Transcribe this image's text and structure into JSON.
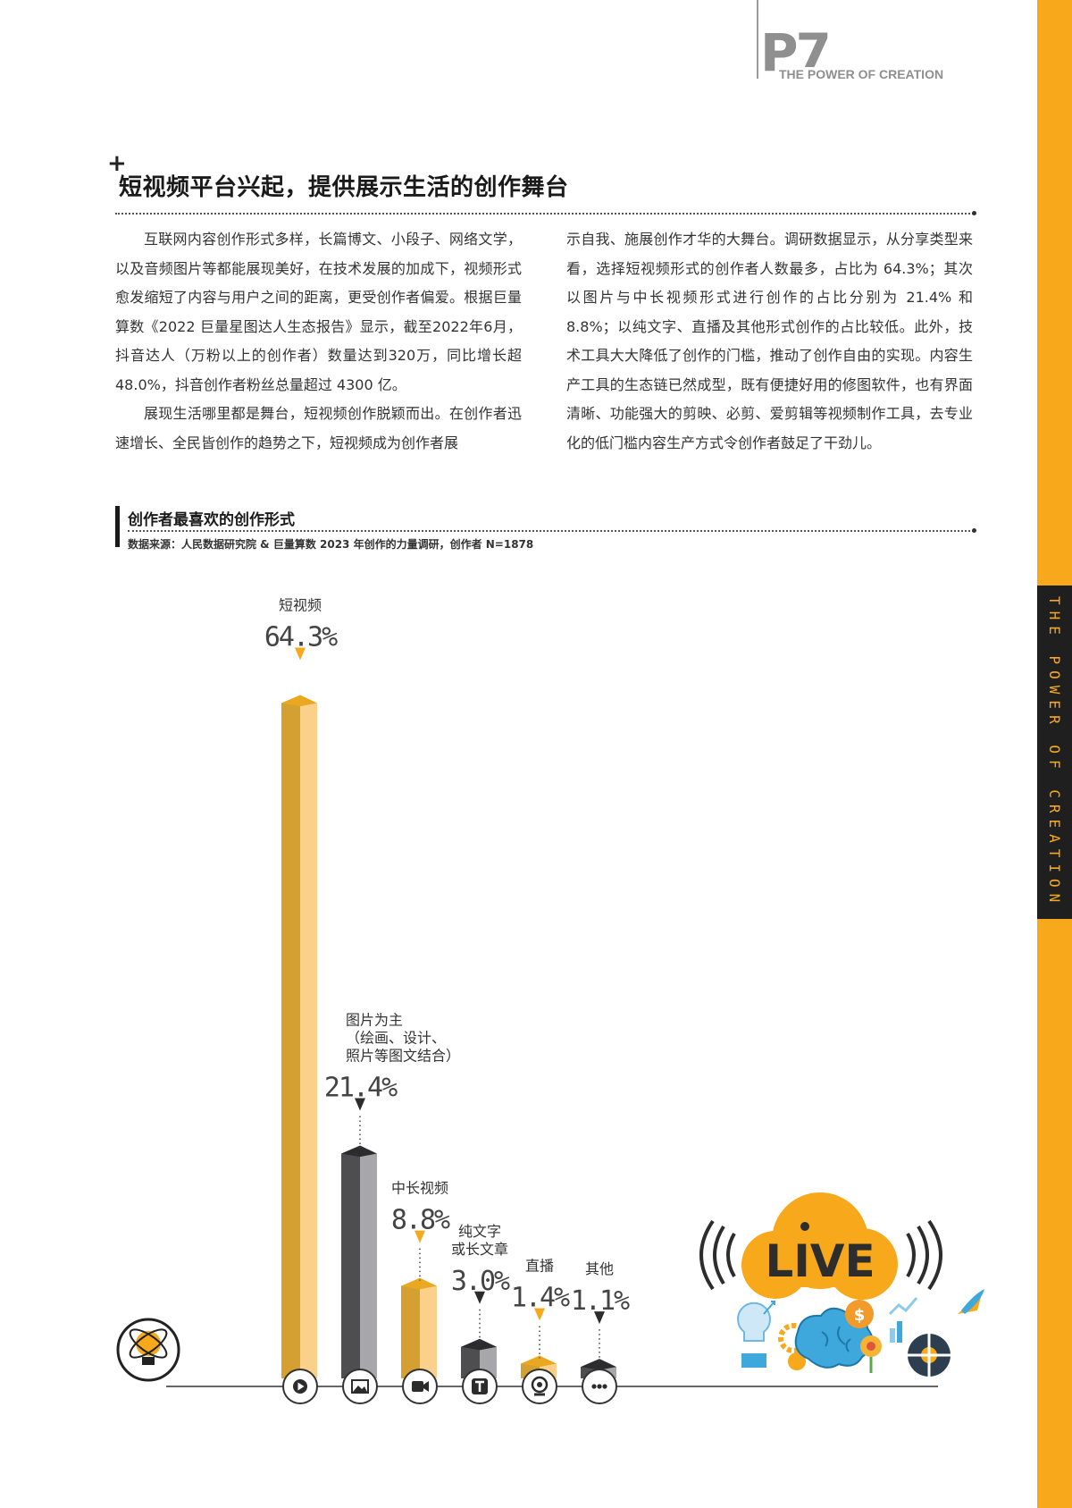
{
  "header": {
    "page_number": "P7",
    "tagline": "THE POWER OF CREATION",
    "side_label": "THE POWER OF CREATION"
  },
  "section": {
    "title": "短视频平台兴起，提供展示生活的创作舞台"
  },
  "article": {
    "left_paragraphs": [
      "互联网内容创作形式多样，长篇博文、小段子、网络文学，以及音频图片等都能展现美好，在技术发展的加成下，视频形式愈发缩短了内容与用户之间的距离，更受创作者偏爱。根据巨量算数《2022 巨量星图达人生态报告》显示，截至2022年6月，抖音达人（万粉以上的创作者）数量达到320万，同比增长超 48.0%，抖音创作者粉丝总量超过 4300 亿。",
      "展现生活哪里都是舞台，短视频创作脱颖而出。在创作者迅速增长、全民皆创作的趋势之下，短视频成为创作者展"
    ],
    "right_paragraphs": [
      "示自我、施展创作才华的大舞台。调研数据显示，从分享类型来看，选择短视频形式的创作者人数最多，占比为 64.3%；其次以图片与中长视频形式进行创作的占比分别为 21.4% 和 8.8%；以纯文字、直播及其他形式创作的占比较低。此外，技术工具大大降低了创作的门槛，推动了创作自由的实现。内容生产工具的生态链已然成型，既有便捷好用的修图软件，也有界面清晰、功能强大的剪映、必剪、爱剪辑等视频制作工具，去专业化的低门槛内容生产方式令创作者鼓足了干劲儿。"
    ]
  },
  "chart": {
    "title": "创作者最喜欢的创作形式",
    "source": "数据来源：人民数据研究院 & 巨量算数 2023 年创作的力量调研，创作者 N=1878"
  },
  "chart_data": {
    "type": "bar",
    "title": "创作者最喜欢的创作形式",
    "unit": "%",
    "ylim": [
      0,
      70
    ],
    "grid": false,
    "legend": "none",
    "categories": [
      [
        "短视频"
      ],
      [
        "图片为主",
        "（绘画、设计、",
        "照片等图文结合）"
      ],
      [
        "中长视频"
      ],
      [
        "纯文字",
        "或长文章"
      ],
      [
        "直播"
      ],
      [
        "其他"
      ]
    ],
    "values": [
      64.3,
      21.4,
      8.8,
      3.0,
      1.4,
      1.1
    ],
    "value_labels": [
      "64.3%",
      "21.4%",
      "8.8%",
      "3.0%",
      "1.4%",
      "1.1%"
    ],
    "icons": [
      "play-icon",
      "image-icon",
      "video-camera-icon",
      "text-icon",
      "webcam-icon",
      "more-icon"
    ],
    "colors": {
      "orange_front": "#d4a032",
      "orange_side": "#fbd08a",
      "orange_top": "#e9a81f",
      "gray_front": "#4e4e50",
      "gray_side": "#a7a7ab",
      "gray_top": "#2c2c2e",
      "accent": "#f7a81b"
    },
    "bar_tones": [
      "orange",
      "gray",
      "orange",
      "gray",
      "orange",
      "gray"
    ]
  },
  "decor": {
    "live_text": "LIVE",
    "illustration_icons": [
      "lightbulb-icon",
      "gear-icon",
      "brain-icon",
      "dollar-icon",
      "chart-icon",
      "rocket-icon"
    ]
  }
}
